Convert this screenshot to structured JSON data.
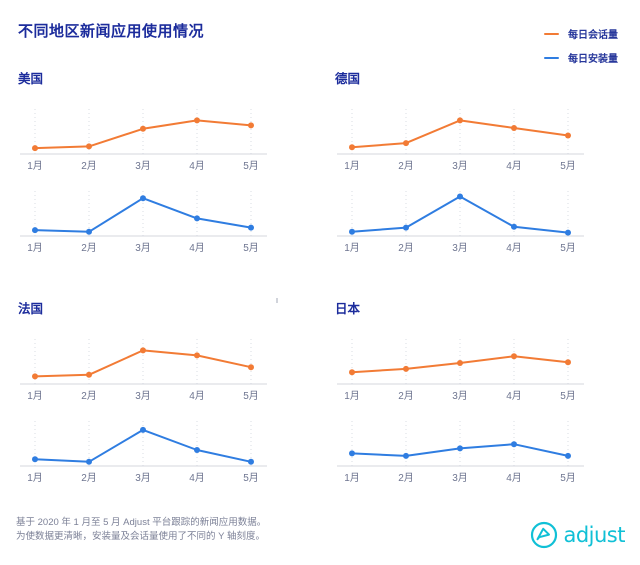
{
  "header": {
    "title": "不同地区新闻应用使用情况"
  },
  "legend": {
    "position": "top-right",
    "items": [
      {
        "label": "每日会话量",
        "color": "#f27b35"
      },
      {
        "label": "每日安装量",
        "color": "#2f7de1"
      }
    ]
  },
  "style": {
    "title_navy": "#1c2c9c",
    "accent_orange": "#f27b35",
    "accent_blue": "#2f7de1",
    "axis_label": "#6e7590",
    "grid": "#dadde3",
    "baseline": "#d4d7de",
    "footer_text": "#7c8197",
    "logo_cyan": "#10c0d6"
  },
  "chart_data": [
    {
      "type": "line",
      "region": "美国",
      "categories": [
        "1月",
        "2月",
        "3月",
        "4月",
        "5月"
      ],
      "series": [
        {
          "name": "每日会话量",
          "color": "#f27b35",
          "values": [
            14,
            18,
            60,
            80,
            68
          ]
        },
        {
          "name": "每日安装量",
          "color": "#2f7de1",
          "values": [
            14,
            10,
            90,
            42,
            20
          ]
        }
      ],
      "ylim": [
        0,
        100
      ],
      "y_axis_ticks": "none (charts use different unlabeled Y scales)",
      "grid": "vertical-dotted",
      "legend_position": "top-right"
    },
    {
      "type": "line",
      "region": "德国",
      "categories": [
        "1月",
        "2月",
        "3月",
        "4月",
        "5月"
      ],
      "series": [
        {
          "name": "每日会话量",
          "color": "#f27b35",
          "values": [
            16,
            26,
            80,
            62,
            44
          ]
        },
        {
          "name": "每日安装量",
          "color": "#2f7de1",
          "values": [
            10,
            20,
            94,
            22,
            8
          ]
        }
      ],
      "ylim": [
        0,
        100
      ],
      "y_axis_ticks": "none (charts use different unlabeled Y scales)",
      "grid": "vertical-dotted",
      "legend_position": "top-right"
    },
    {
      "type": "line",
      "region": "法国",
      "categories": [
        "1月",
        "2月",
        "3月",
        "4月",
        "5月"
      ],
      "series": [
        {
          "name": "每日会话量",
          "color": "#f27b35",
          "values": [
            18,
            22,
            80,
            68,
            40
          ]
        },
        {
          "name": "每日安装量",
          "color": "#2f7de1",
          "values": [
            16,
            10,
            86,
            38,
            10
          ]
        }
      ],
      "ylim": [
        0,
        100
      ],
      "y_axis_ticks": "none (charts use different unlabeled Y scales)",
      "grid": "vertical-dotted",
      "legend_position": "top-right"
    },
    {
      "type": "line",
      "region": "日本",
      "categories": [
        "1月",
        "2月",
        "3月",
        "4月",
        "5月"
      ],
      "series": [
        {
          "name": "每日会话量",
          "color": "#f27b35",
          "values": [
            28,
            36,
            50,
            66,
            52
          ]
        },
        {
          "name": "每日安装量",
          "color": "#2f7de1",
          "values": [
            30,
            24,
            42,
            52,
            24
          ]
        }
      ],
      "ylim": [
        0,
        100
      ],
      "y_axis_ticks": "none (charts use different unlabeled Y scales)",
      "grid": "vertical-dotted",
      "legend_position": "top-right"
    }
  ],
  "footer": {
    "line1": "基于 2020 年 1 月至 5 月 Adjust 平台跟踪的新闻应用数据。",
    "line2": "为使数据更清晰，安装量及会话量使用了不同的 Y 轴刻度。",
    "logo_text": "adjust"
  }
}
